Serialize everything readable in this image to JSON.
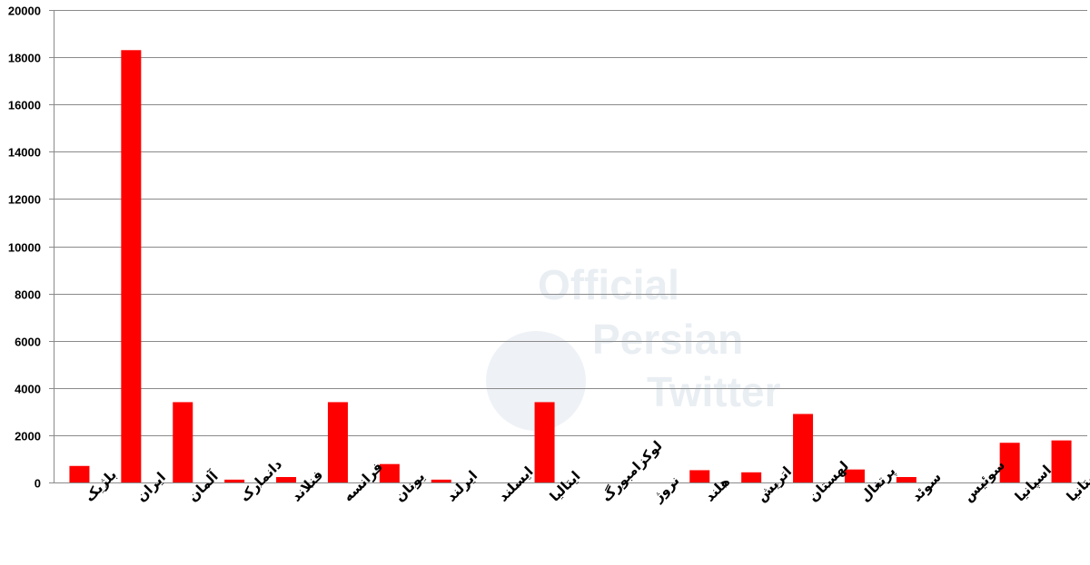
{
  "watermark": {
    "line1": "Official",
    "line2": "Persian",
    "line3": "Twitter"
  },
  "chart_data": {
    "type": "bar",
    "title": "",
    "xlabel": "",
    "ylabel": "",
    "ylim": [
      0,
      20000
    ],
    "yticks": [
      0,
      2000,
      4000,
      6000,
      8000,
      10000,
      12000,
      14000,
      16000,
      18000,
      20000
    ],
    "grid": true,
    "bar_color": "#ff0000",
    "categories": [
      "بلژیک",
      "ایران",
      "آلمان",
      "دانمارک",
      "فنلاند",
      "فرانسه",
      "یونان",
      "ایرلند",
      "ایسلند",
      "ایتالیا",
      "لوکزامبورگ",
      "نروژ",
      "هلند",
      "اتریش",
      "لهستان",
      "پرتغال",
      "سوئد",
      "سوئیس",
      "اسپانیا",
      "بریتانیا"
    ],
    "values": [
      700,
      18300,
      3400,
      120,
      230,
      3400,
      780,
      120,
      0,
      3400,
      0,
      0,
      520,
      430,
      2900,
      550,
      230,
      0,
      1680,
      1780
    ]
  }
}
